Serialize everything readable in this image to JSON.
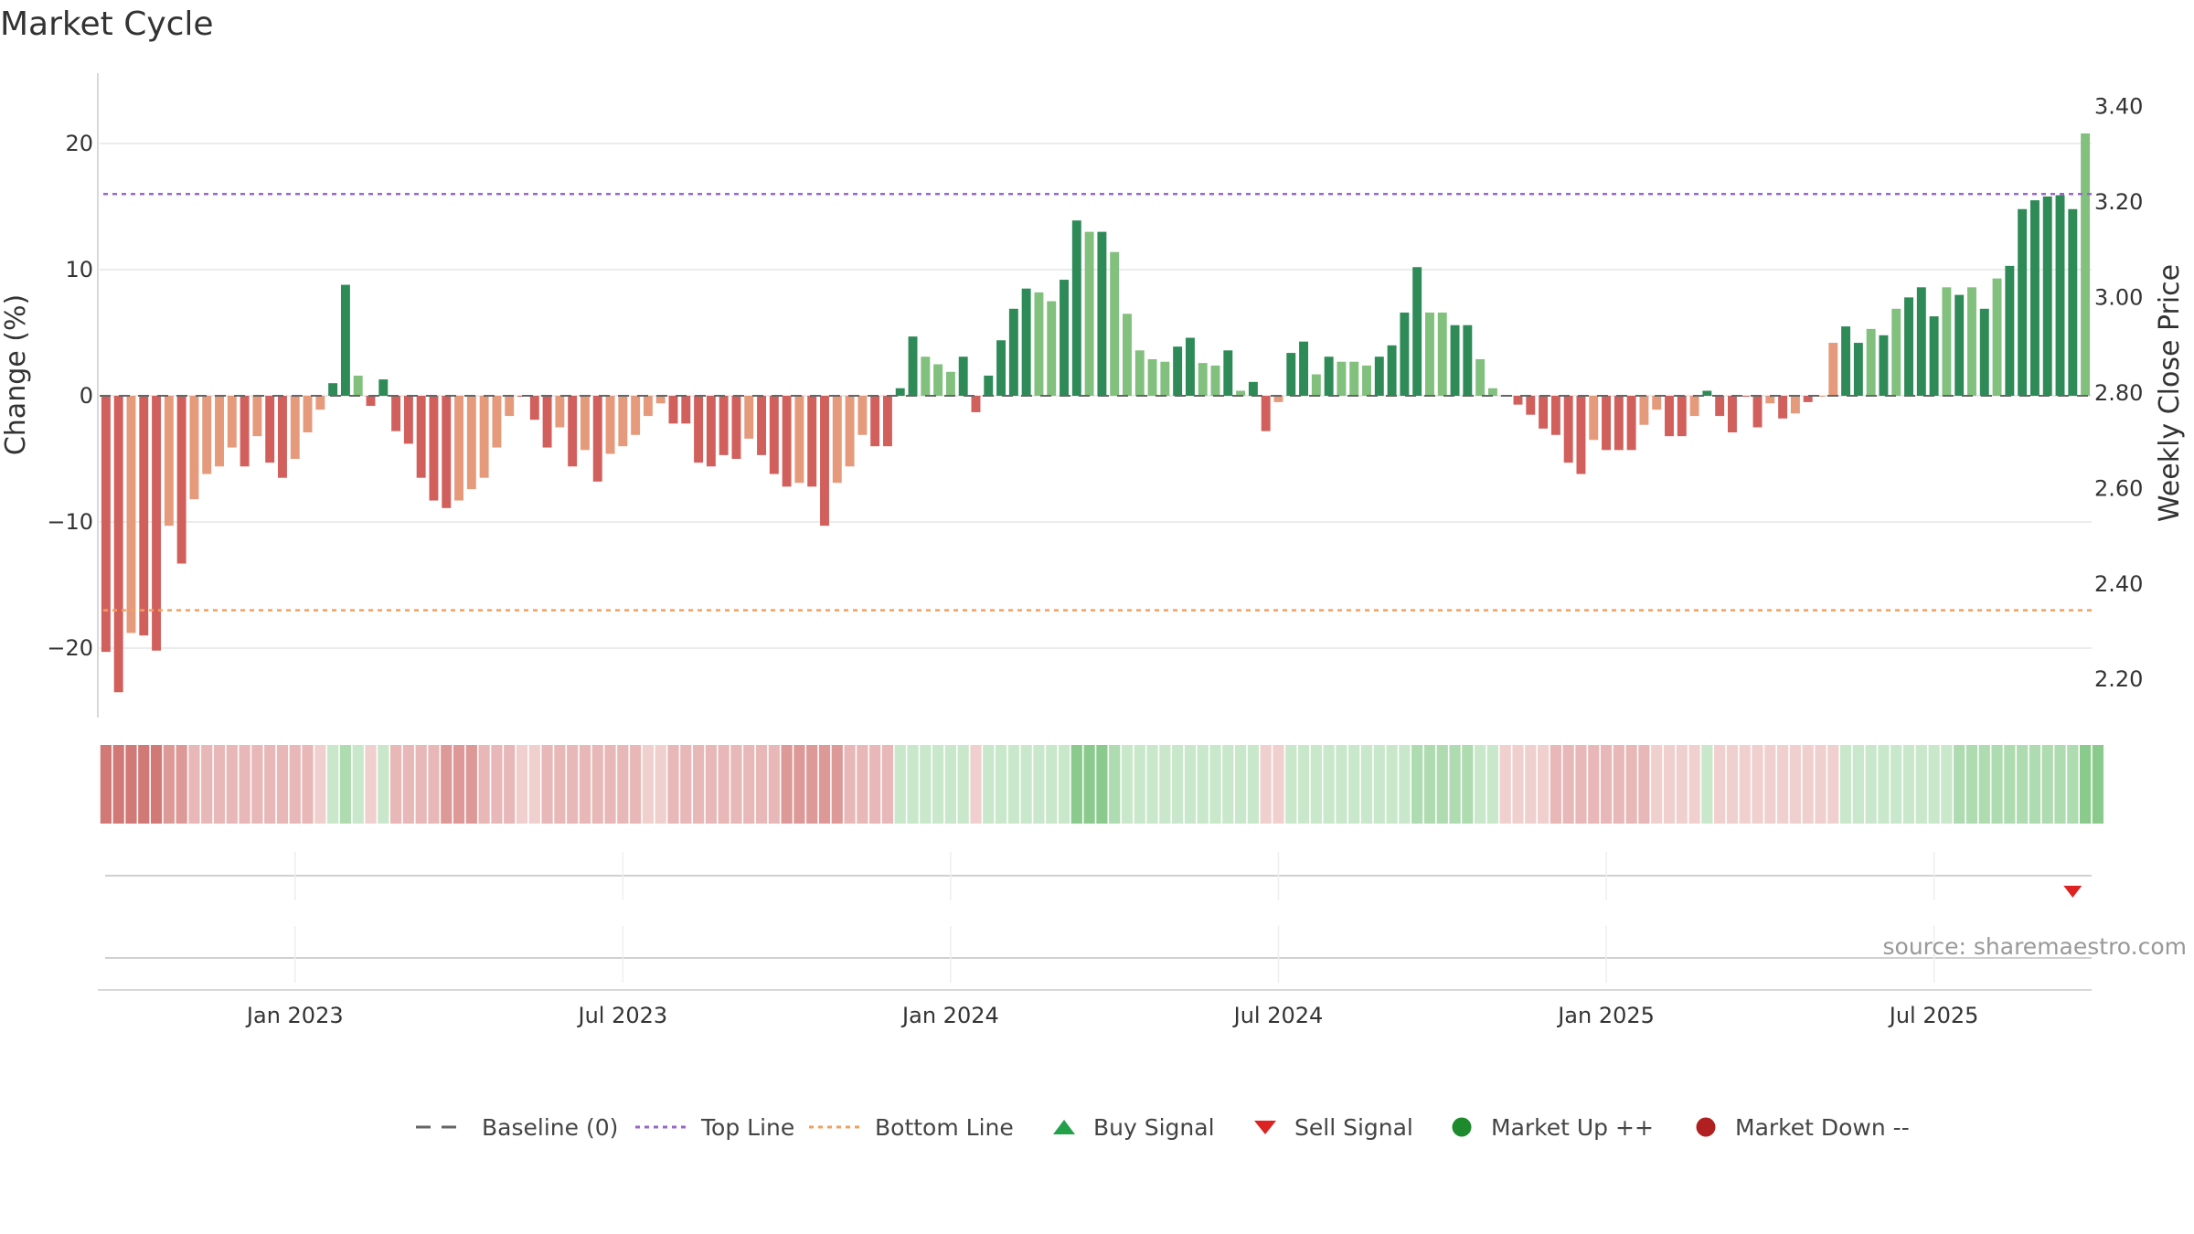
{
  "chart_data": {
    "type": "bar",
    "title": "Market Cycle",
    "ylabel": "Change (%)",
    "y2label": "Weekly Close Price",
    "ylim": [
      -25,
      25
    ],
    "y2lim": [
      2.12,
      3.47
    ],
    "yticks": [
      20,
      10,
      0,
      -10,
      -20
    ],
    "yticklabels": [
      "20",
      "10",
      "0",
      "−10",
      "−20"
    ],
    "y2ticks": [
      3.4,
      3.2,
      3.0,
      2.8,
      2.6,
      2.4,
      2.2
    ],
    "y2ticklabels": [
      "3.40",
      "3.20",
      "3.00",
      "2.80",
      "2.60",
      "2.40",
      "2.20"
    ],
    "xticklabels": [
      "Jan 2023",
      "Jul 2023",
      "Jan 2024",
      "Jul 2024",
      "Jan 2025",
      "Jul 2025"
    ],
    "xtick_bar_index": [
      15,
      41,
      67,
      93,
      119,
      145
    ],
    "top_line": 16,
    "bottom_line": -17,
    "values": [
      -20.3,
      -23.5,
      -18.8,
      -19,
      -20.2,
      -10.3,
      -13.3,
      -8.2,
      -6.2,
      -5.6,
      -4.1,
      -5.6,
      -3.2,
      -5.3,
      -6.5,
      -5.0,
      -2.9,
      -1.1,
      1.0,
      8.8,
      1.6,
      -0.8,
      1.3,
      -2.8,
      -3.8,
      -6.5,
      -8.3,
      -8.9,
      -8.3,
      -7.4,
      -6.5,
      -4.1,
      -1.6,
      0,
      -1.9,
      -4.1,
      -2.5,
      -5.6,
      -4.3,
      -6.8,
      -4.6,
      -4.0,
      -3.1,
      -1.6,
      -0.6,
      -2.2,
      -2.2,
      -5.3,
      -5.6,
      -4.7,
      -5.0,
      -3.4,
      -4.7,
      -6.2,
      -7.2,
      -6.9,
      -7.2,
      -10.3,
      -6.9,
      -5.6,
      -3.1,
      -4.0,
      -4.0,
      0.6,
      4.7,
      3.1,
      2.5,
      1.9,
      3.1,
      -1.3,
      1.6,
      4.4,
      6.9,
      8.5,
      8.2,
      7.5,
      9.2,
      13.9,
      13.0,
      13.0,
      11.4,
      6.5,
      3.6,
      2.9,
      2.7,
      3.9,
      4.6,
      2.6,
      2.4,
      3.6,
      0.4,
      1.1,
      -2.8,
      -0.5,
      3.4,
      4.3,
      1.7,
      3.1,
      2.7,
      2.7,
      2.4,
      3.1,
      4.0,
      6.6,
      10.2,
      6.6,
      6.6,
      5.6,
      5.6,
      2.9,
      0.6,
      0,
      -0.7,
      -1.5,
      -2.6,
      -3.1,
      -5.3,
      -6.2,
      -3.5,
      -4.3,
      -4.3,
      -4.3,
      -2.3,
      -1.1,
      -3.2,
      -3.2,
      -1.6,
      0.4,
      -1.6,
      -2.9,
      0,
      -2.5,
      -0.6,
      -1.8,
      -1.4,
      -0.5,
      0,
      4.2,
      5.5,
      4.2,
      5.3,
      4.8,
      6.9,
      7.8,
      8.6,
      6.3,
      8.6,
      8.0,
      8.6,
      6.9,
      9.3,
      10.3,
      14.8,
      15.5,
      15.8,
      15.9,
      14.8,
      20.8
    ],
    "color_key": [
      "R",
      "R",
      "o",
      "R",
      "R",
      "o",
      "R",
      "o",
      "o",
      "o",
      "o",
      "R",
      "o",
      "R",
      "R",
      "o",
      "o",
      "o",
      "G",
      "G",
      "g",
      "R",
      "G",
      "R",
      "R",
      "R",
      "R",
      "R",
      "o",
      "o",
      "o",
      "o",
      "o",
      "R",
      "R",
      "R",
      "o",
      "R",
      "o",
      "R",
      "o",
      "o",
      "o",
      "o",
      "o",
      "R",
      "R",
      "R",
      "R",
      "R",
      "R",
      "o",
      "R",
      "R",
      "R",
      "o",
      "R",
      "R",
      "o",
      "o",
      "o",
      "R",
      "R",
      "G",
      "G",
      "g",
      "g",
      "g",
      "G",
      "R",
      "G",
      "G",
      "G",
      "G",
      "g",
      "g",
      "G",
      "G",
      "g",
      "G",
      "g",
      "g",
      "g",
      "g",
      "g",
      "G",
      "G",
      "g",
      "g",
      "G",
      "g",
      "G",
      "R",
      "o",
      "G",
      "G",
      "g",
      "G",
      "g",
      "g",
      "g",
      "G",
      "G",
      "G",
      "G",
      "g",
      "g",
      "G",
      "G",
      "g",
      "g",
      "R",
      "R",
      "R",
      "R",
      "R",
      "R",
      "R",
      "o",
      "R",
      "R",
      "R",
      "o",
      "o",
      "R",
      "R",
      "o",
      "G",
      "R",
      "R",
      "R",
      "R",
      "o",
      "R",
      "o",
      "R",
      "o",
      "o",
      "G",
      "G",
      "g",
      "G",
      "g",
      "G",
      "G",
      "G",
      "g",
      "G",
      "g",
      "G",
      "g",
      "G",
      "G",
      "G",
      "G",
      "G",
      "G",
      "g",
      "G"
    ],
    "strip_levels": [
      4,
      4,
      4,
      4,
      4,
      3,
      3,
      2,
      2,
      2,
      2,
      2,
      2,
      2,
      2,
      2,
      2,
      1,
      1,
      2,
      1,
      1,
      1,
      2,
      2,
      2,
      2,
      3,
      3,
      3,
      2,
      2,
      2,
      1,
      1,
      2,
      2,
      2,
      2,
      2,
      2,
      2,
      2,
      1,
      1,
      2,
      2,
      2,
      2,
      2,
      2,
      2,
      2,
      2,
      3,
      3,
      3,
      3,
      3,
      2,
      2,
      2,
      2,
      1,
      1,
      1,
      1,
      1,
      1,
      1,
      1,
      1,
      1,
      1,
      1,
      1,
      1,
      3,
      3,
      3,
      2,
      1,
      1,
      1,
      1,
      1,
      1,
      1,
      1,
      1,
      1,
      1,
      1,
      1,
      1,
      1,
      1,
      1,
      1,
      1,
      1,
      1,
      1,
      1,
      2,
      2,
      2,
      2,
      2,
      1,
      1,
      1,
      1,
      1,
      1,
      2,
      2,
      2,
      2,
      2,
      2,
      2,
      2,
      1,
      1,
      1,
      1,
      1,
      1,
      1,
      1,
      1,
      1,
      1,
      1,
      1,
      1,
      1,
      1,
      1,
      1,
      1,
      1,
      1,
      1,
      1,
      1,
      2,
      2,
      2,
      2,
      2,
      2,
      2,
      2,
      2,
      2,
      3,
      3,
      3,
      3,
      3,
      3
    ],
    "sell_signal_bar_index": [
      156
    ],
    "legend": [
      {
        "label": "Baseline (0)",
        "kind": "dash",
        "color": "#666666"
      },
      {
        "label": "Top Line",
        "kind": "dot",
        "color": "#9966cc"
      },
      {
        "label": "Bottom Line",
        "kind": "dot",
        "color": "#f0a060"
      },
      {
        "label": "Buy Signal",
        "kind": "tri-up",
        "color": "#22a04a"
      },
      {
        "label": "Sell Signal",
        "kind": "tri-down",
        "color": "#dd2222"
      },
      {
        "label": "Market Up ++",
        "kind": "circle",
        "color": "#1e8a2e"
      },
      {
        "label": "Market Down --",
        "kind": "circle",
        "color": "#b02020"
      }
    ],
    "source": "source: sharemaestro.com",
    "colors": {
      "dark_red": "#d1605d",
      "light_red": "#e69a7c",
      "dark_green": "#2e8b57",
      "light_green": "#82c07e",
      "strip_red": "#c9625f",
      "strip_green": "#4caf50"
    }
  }
}
